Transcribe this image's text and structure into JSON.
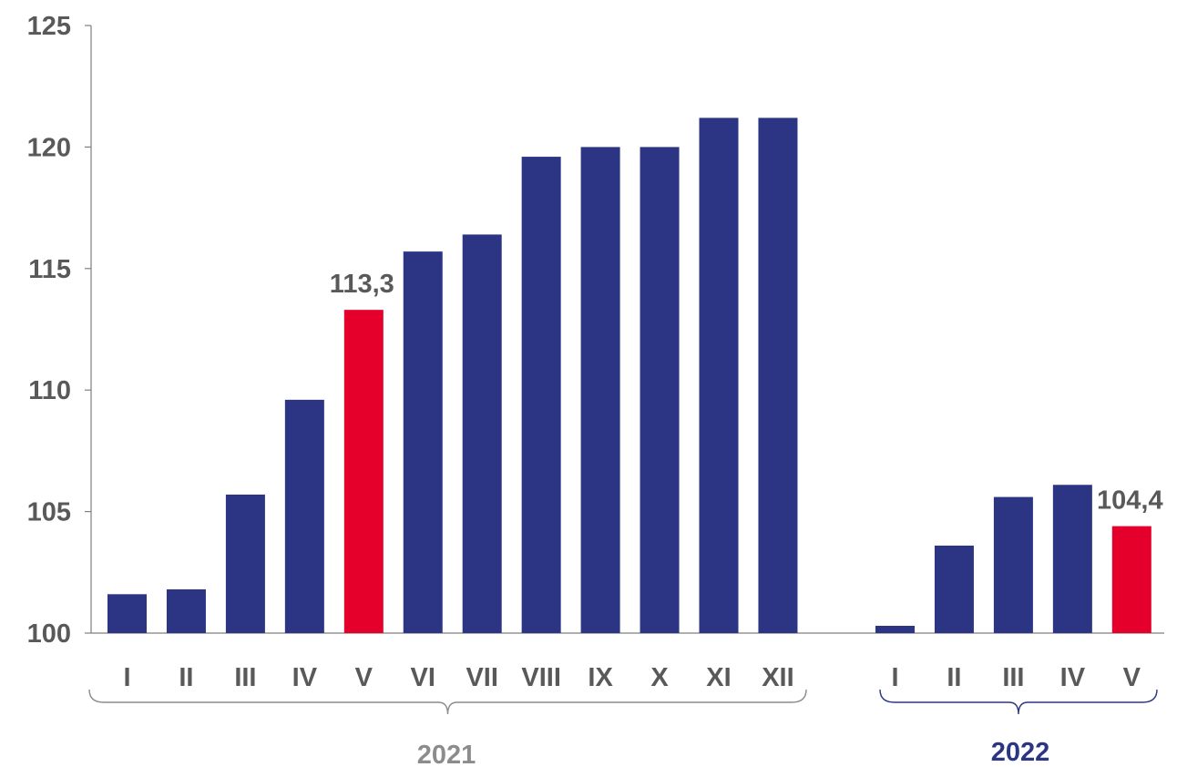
{
  "chart_data": {
    "type": "bar",
    "ylim": [
      100,
      125
    ],
    "yticks": [
      "100",
      "105",
      "110",
      "115",
      "120",
      "125"
    ],
    "grid": false,
    "groups": [
      {
        "year": "2021",
        "categories": [
          "I",
          "II",
          "III",
          "IV",
          "V",
          "VI",
          "VII",
          "VIII",
          "IX",
          "X",
          "XI",
          "XII"
        ],
        "values": [
          101.6,
          101.8,
          105.7,
          109.6,
          113.3,
          115.7,
          116.4,
          119.6,
          120.0,
          120.0,
          121.2,
          121.2
        ],
        "highlight_index": 4,
        "label": "113,3"
      },
      {
        "year": "2022",
        "categories": [
          "I",
          "II",
          "III",
          "IV",
          "V"
        ],
        "values": [
          100.3,
          103.6,
          105.6,
          106.1,
          104.4
        ],
        "highlight_index": 4,
        "label": "104,4"
      }
    ],
    "colors": {
      "bar": "#2b3583",
      "highlight": "#e4002b",
      "axis": "#7f7f7f",
      "year_2021": "#8c8c8c",
      "year_2022": "#2b3583"
    }
  }
}
